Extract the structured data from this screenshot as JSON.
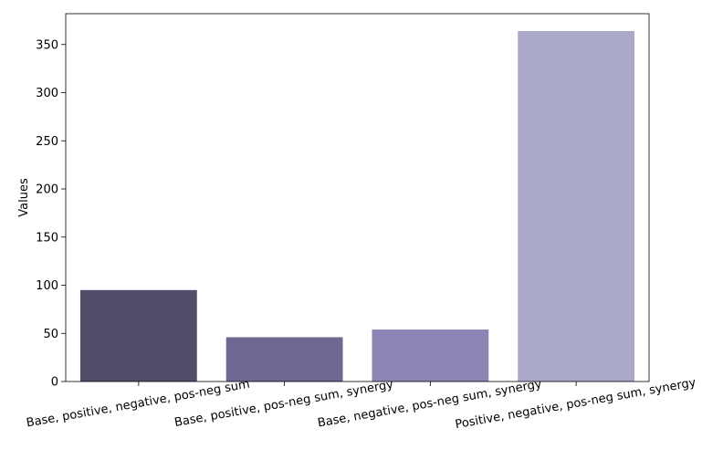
{
  "chart_data": {
    "type": "bar",
    "categories": [
      "Base, positive, negative, pos-neg sum",
      "Base, positive, pos-neg sum, synergy",
      "Base, negative, pos-neg sum, synergy",
      "Positive, negative, pos-neg sum, synergy"
    ],
    "values": [
      95,
      46,
      54,
      364
    ],
    "colors": [
      "#524e69",
      "#6f6893",
      "#8d86b4",
      "#aba9ca"
    ],
    "title": "",
    "xlabel": "",
    "ylabel": "Values",
    "ylim": [
      0,
      382
    ],
    "yticks": [
      0,
      50,
      100,
      150,
      200,
      250,
      300,
      350
    ],
    "grid": false,
    "legend": "none"
  }
}
